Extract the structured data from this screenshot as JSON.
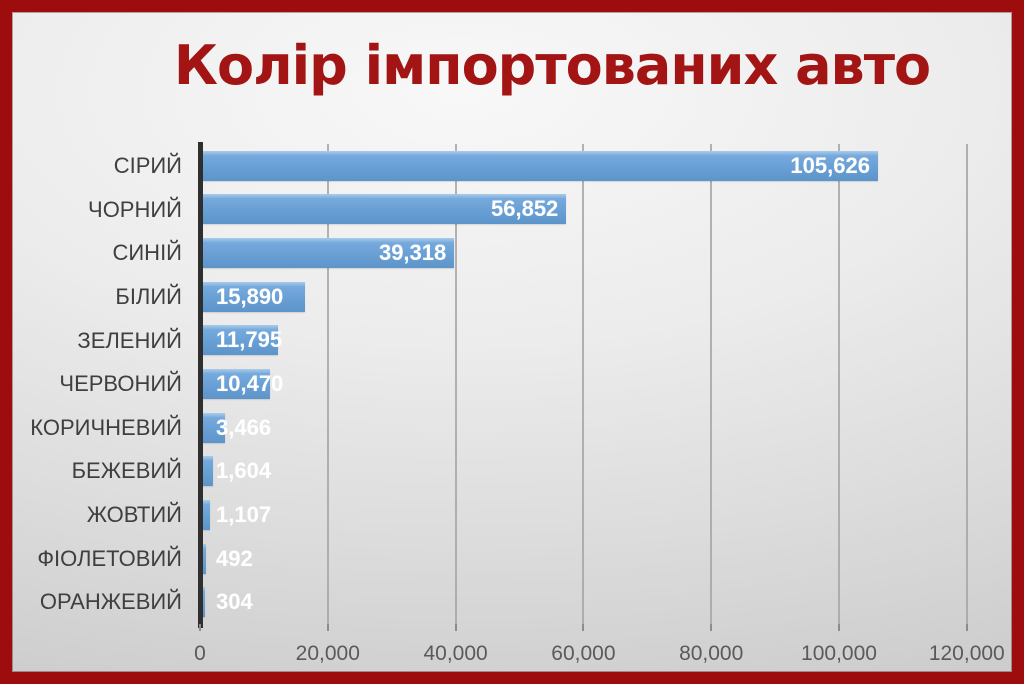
{
  "slide": {
    "title": "Колір імпортованих авто"
  },
  "colors": {
    "frame_border": "#9e0d0e",
    "title_text": "#a31414",
    "bar_fill": "#6aa1d5",
    "gridline": "#a6a6a6",
    "category_axis_line": "#2f2f2f",
    "category_label": "#3f3f3f",
    "tick_label": "#5a5a5a",
    "value_label": "#ffffff",
    "background": "#e5e5e5"
  },
  "chart_data": {
    "type": "bar",
    "orientation": "horizontal",
    "title": "Колір імпортованих авто",
    "categories": [
      "СІРИЙ",
      "ЧОРНИЙ",
      "СИНІЙ",
      "БІЛИЙ",
      "ЗЕЛЕНИЙ",
      "ЧЕРВОНИЙ",
      "КОРИЧНЕВИЙ",
      "БЕЖЕВИЙ",
      "ЖОВТИЙ",
      "ФІОЛЕТОВИЙ",
      "ОРАНЖЕВИЙ"
    ],
    "values": [
      105626,
      56852,
      39318,
      15890,
      11795,
      10470,
      3466,
      1604,
      1107,
      492,
      304
    ],
    "value_labels": [
      "105,626",
      "56,852",
      "39,318",
      "15,890",
      "11,795",
      "10,470",
      "3,466",
      "1,604",
      "1,107",
      "492",
      "304"
    ],
    "xlim": [
      0,
      120000
    ],
    "x_ticks": [
      0,
      20000,
      40000,
      60000,
      80000,
      100000,
      120000
    ],
    "x_tick_labels": [
      "0",
      "20,000",
      "40,000",
      "60,000",
      "80,000",
      "100,000",
      "120,000"
    ],
    "grid": true,
    "legend": false,
    "value_label_position": "inside-end-or-outside-start"
  }
}
